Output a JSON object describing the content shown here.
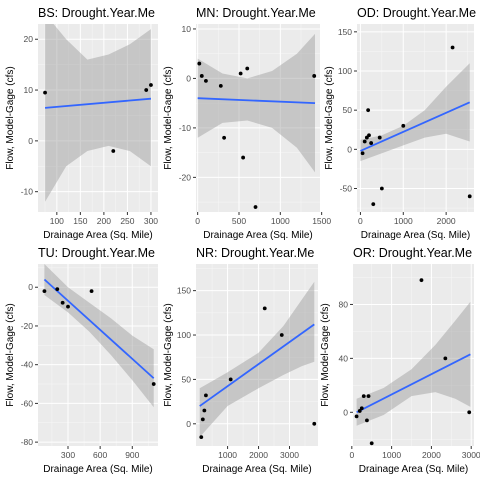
{
  "chart_data": [
    {
      "type": "scatter",
      "title": "BS: Drought.Year.Me",
      "xlabel": "Drainage Area (Sq. Mile)",
      "ylabel": "Flow, Model-Gage (cfs)",
      "xlim": [
        60,
        315
      ],
      "ylim": [
        -14,
        23
      ],
      "xticks": [
        100,
        150,
        200,
        250,
        300
      ],
      "yticks": [
        -10,
        0,
        10,
        20
      ],
      "points": [
        [
          75,
          9.5
        ],
        [
          220,
          -2
        ],
        [
          290,
          10
        ],
        [
          300,
          11
        ]
      ],
      "fit": {
        "x": [
          75,
          300
        ],
        "y": [
          6.5,
          8.3
        ]
      },
      "band_upper": [
        [
          75,
          25
        ],
        [
          120,
          20
        ],
        [
          165,
          16
        ],
        [
          210,
          17
        ],
        [
          255,
          19
        ],
        [
          300,
          22
        ]
      ],
      "band_lower": [
        [
          75,
          -12
        ],
        [
          120,
          -5
        ],
        [
          165,
          -2
        ],
        [
          210,
          -1
        ],
        [
          255,
          -2
        ],
        [
          300,
          -5
        ]
      ]
    },
    {
      "type": "scatter",
      "title": "MN: Drought.Year.Me",
      "xlabel": "Drainage Area (Sq. Mile)",
      "ylabel": "Flow, Model-Gage (cfs)",
      "xlim": [
        -20,
        1480
      ],
      "ylim": [
        -27,
        11
      ],
      "xticks": [
        0,
        500,
        1000,
        1500
      ],
      "yticks": [
        -20,
        -10,
        0,
        10
      ],
      "points": [
        [
          20,
          3
        ],
        [
          50,
          0.5
        ],
        [
          100,
          -0.5
        ],
        [
          280,
          -1.5
        ],
        [
          320,
          -12
        ],
        [
          520,
          1
        ],
        [
          550,
          -16
        ],
        [
          600,
          2
        ],
        [
          700,
          -26
        ],
        [
          1410,
          0.5
        ]
      ],
      "fit": {
        "x": [
          0,
          1420
        ],
        "y": [
          -4,
          -5
        ]
      },
      "band_upper": [
        [
          0,
          4
        ],
        [
          300,
          1
        ],
        [
          600,
          0
        ],
        [
          900,
          1.5
        ],
        [
          1200,
          5
        ],
        [
          1420,
          9
        ]
      ],
      "band_lower": [
        [
          0,
          -12
        ],
        [
          300,
          -9
        ],
        [
          600,
          -8.5
        ],
        [
          900,
          -10
        ],
        [
          1200,
          -14
        ],
        [
          1420,
          -19
        ]
      ]
    },
    {
      "type": "scatter",
      "title": "OD: Drought.Year.Me",
      "xlabel": "Drainage Area (Sq. Mile)",
      "ylabel": "Flow, Model-Gage (cfs)",
      "xlim": [
        -80,
        2650
      ],
      "ylim": [
        -80,
        160
      ],
      "xticks": [
        0,
        1000,
        2000
      ],
      "yticks": [
        -50,
        0,
        50,
        100,
        150
      ],
      "points": [
        [
          50,
          -5
        ],
        [
          100,
          10
        ],
        [
          150,
          15
        ],
        [
          180,
          50
        ],
        [
          200,
          18
        ],
        [
          250,
          8
        ],
        [
          300,
          -70
        ],
        [
          450,
          15
        ],
        [
          500,
          -50
        ],
        [
          1000,
          30
        ],
        [
          2150,
          130
        ],
        [
          2550,
          -60
        ]
      ],
      "fit": {
        "x": [
          0,
          2550
        ],
        "y": [
          -2,
          60
        ]
      },
      "band_upper": [
        [
          0,
          12
        ],
        [
          500,
          18
        ],
        [
          1000,
          30
        ],
        [
          1500,
          50
        ],
        [
          2000,
          80
        ],
        [
          2550,
          110
        ]
      ],
      "band_lower": [
        [
          0,
          -15
        ],
        [
          500,
          -5
        ],
        [
          1000,
          5
        ],
        [
          1500,
          15
        ],
        [
          2000,
          20
        ],
        [
          2550,
          10
        ]
      ]
    },
    {
      "type": "scatter",
      "title": "TU: Drought.Year.Me",
      "xlabel": "Drainage Area (Sq. Mile)",
      "ylabel": "Flow, Model-Gage (cfs)",
      "xlim": [
        20,
        1140
      ],
      "ylim": [
        -82,
        12
      ],
      "xticks": [
        300,
        600,
        900
      ],
      "yticks": [
        -80,
        -60,
        -40,
        -20,
        0
      ],
      "points": [
        [
          80,
          -2
        ],
        [
          200,
          -1
        ],
        [
          250,
          -8
        ],
        [
          300,
          -10
        ],
        [
          520,
          -2
        ],
        [
          1100,
          -50
        ]
      ],
      "fit": {
        "x": [
          80,
          1100
        ],
        "y": [
          4,
          -47
        ]
      },
      "band_upper": [
        [
          80,
          12
        ],
        [
          300,
          0
        ],
        [
          500,
          -8
        ],
        [
          700,
          -16
        ],
        [
          900,
          -25
        ],
        [
          1100,
          -32
        ]
      ],
      "band_lower": [
        [
          80,
          -4
        ],
        [
          300,
          -13
        ],
        [
          500,
          -23
        ],
        [
          700,
          -35
        ],
        [
          900,
          -48
        ],
        [
          1100,
          -62
        ]
      ]
    },
    {
      "type": "scatter",
      "title": "NR: Drought.Year.Me",
      "xlabel": "Drainage Area (Sq. Mile)",
      "ylabel": "Flow, Model-Gage (cfs)",
      "xlim": [
        -20,
        3920
      ],
      "ylim": [
        -25,
        180
      ],
      "xticks": [
        1000,
        2000,
        3000
      ],
      "yticks": [
        0,
        50,
        100,
        150
      ],
      "points": [
        [
          150,
          -15
        ],
        [
          200,
          5
        ],
        [
          250,
          15
        ],
        [
          300,
          32
        ],
        [
          1100,
          50
        ],
        [
          2200,
          130
        ],
        [
          2750,
          100
        ],
        [
          3800,
          0
        ]
      ],
      "fit": {
        "x": [
          100,
          3800
        ],
        "y": [
          20,
          112
        ]
      },
      "band_upper": [
        [
          100,
          40
        ],
        [
          1000,
          58
        ],
        [
          2000,
          80
        ],
        [
          2800,
          110
        ],
        [
          3400,
          140
        ],
        [
          3800,
          160
        ]
      ],
      "band_lower": [
        [
          100,
          -15
        ],
        [
          1000,
          20
        ],
        [
          2000,
          40
        ],
        [
          2800,
          55
        ],
        [
          3400,
          65
        ],
        [
          3800,
          70
        ]
      ]
    },
    {
      "type": "scatter",
      "title": "OR: Drought.Year.Me",
      "xlabel": "Drainage Area (Sq. Mile)",
      "ylabel": "Flow, Model-Gage (cfs)",
      "xlim": [
        30,
        3070
      ],
      "ylim": [
        -25,
        110
      ],
      "xticks": [
        0,
        1000,
        2000,
        3000
      ],
      "yticks": [
        0,
        40,
        80
      ],
      "points": [
        [
          120,
          -3
        ],
        [
          200,
          1
        ],
        [
          250,
          3
        ],
        [
          300,
          12
        ],
        [
          380,
          -6
        ],
        [
          420,
          12
        ],
        [
          500,
          -23
        ],
        [
          1750,
          98
        ],
        [
          2350,
          40
        ],
        [
          2950,
          0
        ]
      ],
      "fit": {
        "x": [
          120,
          2980
        ],
        "y": [
          0,
          43
        ]
      },
      "band_upper": [
        [
          120,
          10
        ],
        [
          800,
          18
        ],
        [
          1500,
          32
        ],
        [
          2100,
          50
        ],
        [
          2600,
          68
        ],
        [
          2980,
          82
        ]
      ],
      "band_lower": [
        [
          120,
          -10
        ],
        [
          800,
          -2
        ],
        [
          1500,
          12
        ],
        [
          2100,
          15
        ],
        [
          2600,
          10
        ],
        [
          2980,
          4
        ]
      ]
    }
  ]
}
